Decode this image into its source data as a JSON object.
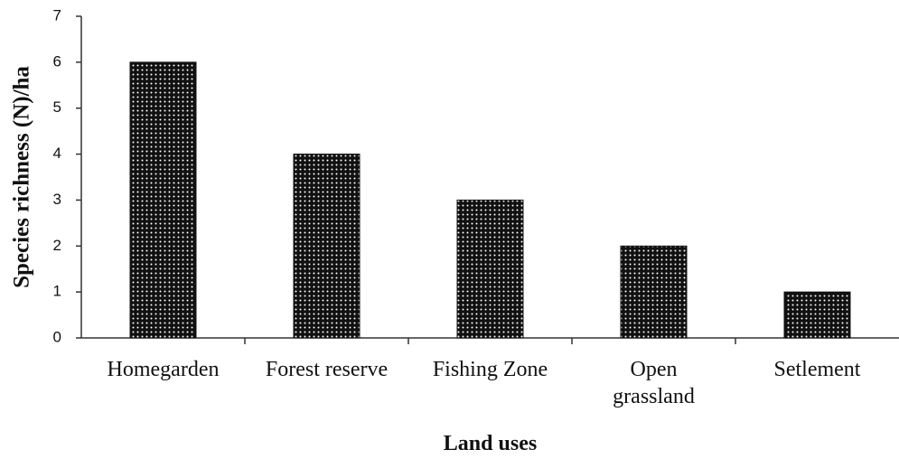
{
  "chart_data": {
    "type": "bar",
    "x_label": "Land uses",
    "y_label": "Species richness (N)/ha",
    "categories": [
      "Homegarden",
      "Forest reserve",
      "Fishing Zone",
      "Open\ngrassland",
      "Setlement"
    ],
    "values": [
      6,
      4,
      3,
      2,
      1
    ],
    "color": "#111111",
    "ylim": [
      0,
      7
    ],
    "yticks": [
      0,
      1,
      2,
      3,
      4,
      5,
      6,
      7
    ],
    "grid": false
  }
}
